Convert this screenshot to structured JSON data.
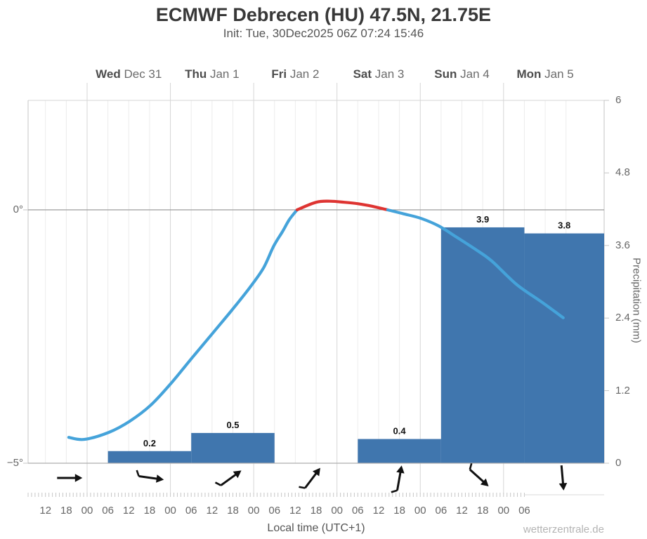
{
  "header": {
    "title": "ECMWF Debrecen (HU) 47.5N, 21.75E",
    "subtitle": "Init: Tue, 30Dec2025 06Z 07:24 15:46"
  },
  "footer": {
    "xlabel": "Local time (UTC+1)",
    "watermark": "wetterzentrale.de"
  },
  "chart_data": {
    "type": "line+bar",
    "title": "ECMWF Debrecen (HU) 47.5N, 21.75E",
    "days": [
      {
        "name": "Wed",
        "date": "Dec 31"
      },
      {
        "name": "Thu",
        "date": "Jan 1"
      },
      {
        "name": "Fri",
        "date": "Jan 2"
      },
      {
        "name": "Sat",
        "date": "Jan 3"
      },
      {
        "name": "Sun",
        "date": "Jan 4"
      },
      {
        "name": "Mon",
        "date": "Jan 5"
      }
    ],
    "x_axis": {
      "start": "Tue Dec 30 12:00 local",
      "end": "Mon Jan 5 06:00 local",
      "step_hours": 6,
      "tick_labels": [
        "12",
        "18",
        "00",
        "06",
        "12",
        "18",
        "00",
        "06",
        "12",
        "18",
        "00",
        "06",
        "12",
        "18",
        "00",
        "06",
        "12",
        "18",
        "00",
        "06",
        "12",
        "18",
        "00",
        "06"
      ]
    },
    "temp_axis": {
      "side": "left",
      "unit": "°C",
      "ylim": [
        -5,
        2.15
      ],
      "ticks": [
        {
          "label": "0°",
          "value": 0
        },
        {
          "label": "−5°",
          "value": -5
        }
      ]
    },
    "precip_axis": {
      "side": "right",
      "label": "Precipitation (mm)",
      "ylim": [
        0,
        6
      ],
      "ticks": [
        {
          "label": "0",
          "value": 0
        },
        {
          "label": "1.2",
          "value": 1.2
        },
        {
          "label": "2.4",
          "value": 2.4
        },
        {
          "label": "3.6",
          "value": 3.6
        },
        {
          "label": "4.8",
          "value": 4.8
        },
        {
          "label": "6",
          "value": 6
        }
      ]
    },
    "temperature_curve": {
      "note": "points are [hours since Dec 30 00:00 local, temperature °C]; red where above 0°C",
      "points": [
        [
          18.7,
          -4.49
        ],
        [
          23.2,
          -4.53
        ],
        [
          30.3,
          -4.39
        ],
        [
          36.3,
          -4.17
        ],
        [
          42.4,
          -3.85
        ],
        [
          48.1,
          -3.43
        ],
        [
          54.6,
          -2.89
        ],
        [
          60.6,
          -2.4
        ],
        [
          65.7,
          -1.98
        ],
        [
          70.8,
          -1.54
        ],
        [
          74.8,
          -1.15
        ],
        [
          77.8,
          -0.71
        ],
        [
          80.3,
          -0.43
        ],
        [
          82.3,
          -0.19
        ],
        [
          84.5,
          0
        ],
        [
          90.0,
          0.15
        ],
        [
          94.0,
          0.17
        ],
        [
          98.1,
          0.15
        ],
        [
          102.1,
          0.12
        ],
        [
          106.2,
          0.07
        ],
        [
          110.6,
          0
        ],
        [
          115.3,
          -0.08
        ],
        [
          120.3,
          -0.17
        ],
        [
          125.4,
          -0.32
        ],
        [
          130.5,
          -0.54
        ],
        [
          135.9,
          -0.78
        ],
        [
          140.6,
          -1.01
        ],
        [
          147.7,
          -1.47
        ],
        [
          154.8,
          -1.81
        ],
        [
          161.2,
          -2.13
        ]
      ]
    },
    "precip_bars": {
      "note": "24h totals, hours since Dec 30 00:00 local",
      "bars": [
        {
          "from_h": 30,
          "to_h": 54,
          "mm": 0.2
        },
        {
          "from_h": 54,
          "to_h": 78,
          "mm": 0.5
        },
        {
          "from_h": 102,
          "to_h": 126,
          "mm": 0.4
        },
        {
          "from_h": 126,
          "to_h": 150,
          "mm": 3.9
        },
        {
          "from_h": 150,
          "to_h": 174,
          "mm": 3.8
        }
      ]
    },
    "wind_arrows": [
      {
        "t": 19,
        "rot": 0,
        "barb": false
      },
      {
        "t": 42.5,
        "rot": 8,
        "barb": true
      },
      {
        "t": 65.5,
        "rot": -36,
        "barb": true
      },
      {
        "t": 89,
        "rot": -53,
        "barb": true
      },
      {
        "t": 114,
        "rot": -80,
        "barb": true
      },
      {
        "t": 137,
        "rot": 42,
        "barb": true
      },
      {
        "t": 161,
        "rot": 85,
        "barb": false
      }
    ],
    "colors": {
      "temp_below_zero": "#45a3da",
      "temp_above_zero": "#de3432",
      "precip_bar": "#4076ae",
      "grid": "#ececec",
      "day_grid": "#d6d6d6",
      "zero_line": "#9c9c9c",
      "axis": "#c4c4c4",
      "arrow": "#111111"
    }
  }
}
